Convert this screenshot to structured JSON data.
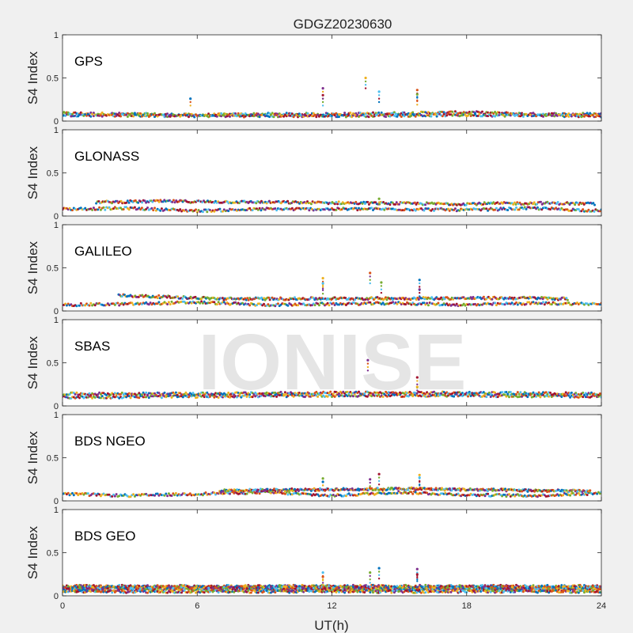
{
  "title": "GDGZ20230630",
  "watermark": "IONISE",
  "xlabel": "UT(h)",
  "ylabel": "S4 Index",
  "xlim": [
    0,
    24
  ],
  "xticks": [
    "0",
    "6",
    "12",
    "18",
    "24"
  ],
  "ylim": [
    0,
    1
  ],
  "yticks": [
    "0",
    "0.5",
    "1"
  ],
  "palette": [
    "#0072BD",
    "#D95319",
    "#EDB120",
    "#7E2F8E",
    "#77AC30",
    "#4DBEEE",
    "#A2142F"
  ],
  "chart_data": [
    {
      "type": "scatter",
      "label": "GPS",
      "series_values": [
        {
          "x": [
            0,
            3,
            6,
            9,
            12,
            15,
            18,
            21,
            24
          ],
          "y": [
            0.09,
            0.08,
            0.07,
            0.08,
            0.08,
            0.09,
            0.1,
            0.08,
            0.08
          ]
        },
        {
          "x": [
            0,
            6,
            12,
            18,
            24
          ],
          "y": [
            0.07,
            0.06,
            0.06,
            0.07,
            0.06
          ]
        }
      ],
      "outliers": [
        {
          "x": 5.7,
          "y": 0.26
        },
        {
          "x": 11.6,
          "y": 0.38
        },
        {
          "x": 11.6,
          "y": 0.3
        },
        {
          "x": 13.5,
          "y": 0.5
        },
        {
          "x": 14.1,
          "y": 0.34
        },
        {
          "x": 15.8,
          "y": 0.36
        },
        {
          "x": 15.8,
          "y": 0.31
        }
      ]
    },
    {
      "type": "scatter",
      "label": "GLONASS",
      "series_values": [
        {
          "x": [
            0,
            3,
            6,
            9,
            12,
            15,
            18,
            21,
            24
          ],
          "y": [
            0.08,
            0.09,
            0.06,
            0.08,
            0.08,
            0.08,
            0.07,
            0.09,
            0.06
          ]
        },
        {
          "x": [
            1.5,
            4.5,
            17.5,
            21.5,
            23.7
          ],
          "y": [
            0.16,
            0.17,
            0.14,
            0.15,
            0.14
          ]
        }
      ],
      "outliers": [
        {
          "x": 11.5,
          "y": 0.16
        },
        {
          "x": 14.1,
          "y": 0.2
        }
      ]
    },
    {
      "type": "scatter",
      "label": "GALILEO",
      "series_values": [
        {
          "x": [
            0,
            3,
            6,
            9,
            12,
            15,
            18,
            21,
            24
          ],
          "y": [
            0.07,
            0.08,
            0.1,
            0.07,
            0.08,
            0.09,
            0.07,
            0.09,
            0.08
          ]
        },
        {
          "x": [
            2.5,
            7.3,
            21,
            22.5
          ],
          "y": [
            0.18,
            0.14,
            0.15,
            0.14
          ]
        }
      ],
      "outliers": [
        {
          "x": 11.6,
          "y": 0.38
        },
        {
          "x": 11.6,
          "y": 0.32
        },
        {
          "x": 13.7,
          "y": 0.44
        },
        {
          "x": 14.2,
          "y": 0.33
        },
        {
          "x": 15.9,
          "y": 0.36
        },
        {
          "x": 15.9,
          "y": 0.25
        }
      ]
    },
    {
      "type": "scatter",
      "label": "SBAS",
      "series_values": [
        {
          "x": [
            0,
            6,
            12,
            18,
            24
          ],
          "y": [
            0.1,
            0.11,
            0.12,
            0.12,
            0.11
          ]
        },
        {
          "x": [
            0,
            6,
            12,
            18,
            24
          ],
          "y": [
            0.14,
            0.14,
            0.15,
            0.15,
            0.14
          ]
        }
      ],
      "outliers": [
        {
          "x": 13.6,
          "y": 0.53
        },
        {
          "x": 15.8,
          "y": 0.33
        },
        {
          "x": 15.8,
          "y": 0.22
        }
      ]
    },
    {
      "type": "scatter",
      "label": "BDS NGEO",
      "series_values": [
        {
          "x": [
            0,
            3,
            6,
            9,
            12,
            15,
            18,
            21,
            24
          ],
          "y": [
            0.08,
            0.06,
            0.08,
            0.1,
            0.06,
            0.1,
            0.07,
            0.06,
            0.09
          ]
        },
        {
          "x": [
            7,
            15.5,
            23.5
          ],
          "y": [
            0.12,
            0.14,
            0.11
          ]
        }
      ],
      "outliers": [
        {
          "x": 11.6,
          "y": 0.26
        },
        {
          "x": 11.6,
          "y": 0.22
        },
        {
          "x": 13.7,
          "y": 0.25
        },
        {
          "x": 14.1,
          "y": 0.31
        },
        {
          "x": 15.9,
          "y": 0.3
        },
        {
          "x": 15.9,
          "y": 0.27
        }
      ]
    },
    {
      "type": "scatter",
      "label": "BDS GEO",
      "series_values": [
        {
          "x": [
            0,
            24
          ],
          "y": [
            0.11,
            0.11
          ]
        },
        {
          "x": [
            0,
            24
          ],
          "y": [
            0.09,
            0.09
          ]
        },
        {
          "x": [
            0,
            24
          ],
          "y": [
            0.07,
            0.07
          ]
        },
        {
          "x": [
            0,
            24
          ],
          "y": [
            0.05,
            0.05
          ]
        },
        {
          "x": [
            0,
            24
          ],
          "y": [
            0.1,
            0.1
          ]
        }
      ],
      "outliers": [
        {
          "x": 11.6,
          "y": 0.27
        },
        {
          "x": 11.6,
          "y": 0.22
        },
        {
          "x": 13.7,
          "y": 0.27
        },
        {
          "x": 14.1,
          "y": 0.32
        },
        {
          "x": 15.8,
          "y": 0.31
        },
        {
          "x": 15.8,
          "y": 0.25
        }
      ]
    }
  ]
}
